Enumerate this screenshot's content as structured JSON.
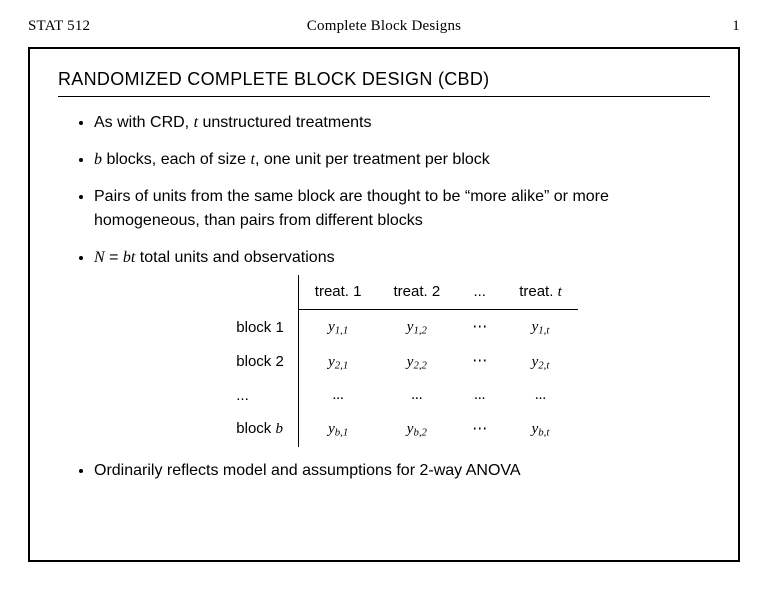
{
  "header": {
    "course": "STAT 512",
    "topic": "Complete Block Designs",
    "pageno": "1"
  },
  "title": "RANDOMIZED COMPLETE BLOCK DESIGN (CBD)",
  "bullets": {
    "b1_lead": "As with CRD, ",
    "b1_tail": " unstructured treatments",
    "b2_mid1": " blocks, each of size ",
    "b2_tail": ", one unit per treatment per block",
    "b3": "Pairs of units from the same block are thought to be “more alike” or more homogeneous, than pairs from different blocks",
    "b4_tail": " total units and observations",
    "b5": "Ordinarily reflects model and assumptions for 2-way ANOVA"
  },
  "vars": {
    "t": "t",
    "b": "b",
    "N": "N",
    "eq": " = ",
    "bt": "bt",
    "y": "y"
  },
  "table": {
    "head_empty": "",
    "col1": "treat. 1",
    "col2": "treat. 2",
    "coldots": "...",
    "colt_pre": "treat. ",
    "row1": "block 1",
    "row2": "block 2",
    "rowdots": "...",
    "rowb_pre": "block ",
    "dots": "⋯",
    "cell_dots": "...",
    "sub11": "1,1",
    "sub12": "1,2",
    "sub1t": "1,t",
    "sub21": "2,1",
    "sub22": "2,2",
    "sub2t": "2,t",
    "subb1": "b,1",
    "subb2": "b,2",
    "subbt": "b,t"
  }
}
